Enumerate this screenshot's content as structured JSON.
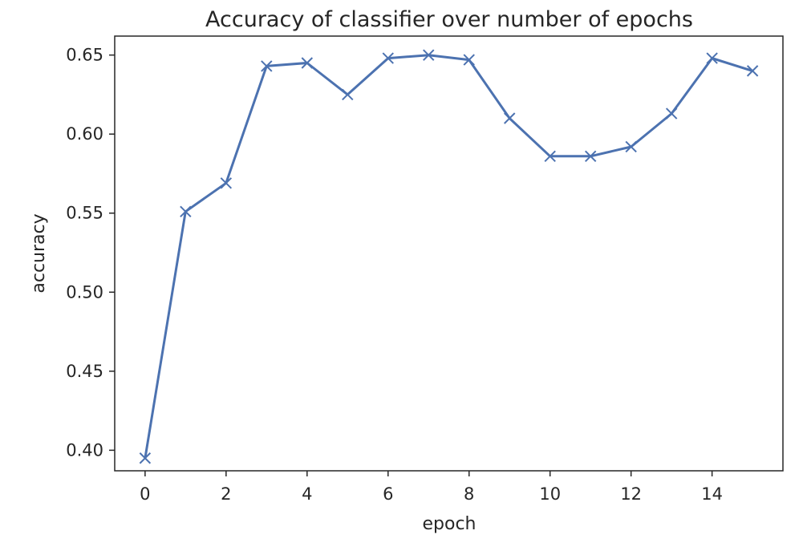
{
  "chart_data": {
    "type": "line",
    "title": "Accuracy of classifier over number of epochs",
    "xlabel": "epoch",
    "ylabel": "accuracy",
    "xlim": [
      -0.75,
      15.75
    ],
    "ylim": [
      0.387,
      0.662
    ],
    "xticks": [
      0,
      2,
      4,
      6,
      8,
      10,
      12,
      14
    ],
    "xtick_labels": [
      "0",
      "2",
      "4",
      "6",
      "8",
      "10",
      "12",
      "14"
    ],
    "yticks": [
      0.4,
      0.45,
      0.5,
      0.55,
      0.6,
      0.65
    ],
    "ytick_labels": [
      "0.40",
      "0.45",
      "0.50",
      "0.55",
      "0.60",
      "0.65"
    ],
    "grid": false,
    "marker": "x",
    "series": [
      {
        "color": "#4c72b0",
        "x": [
          0,
          1,
          2,
          3,
          4,
          5,
          6,
          7,
          8,
          9,
          10,
          11,
          12,
          13,
          14,
          15
        ],
        "y": [
          0.395,
          0.551,
          0.569,
          0.643,
          0.645,
          0.625,
          0.648,
          0.65,
          0.647,
          0.61,
          0.586,
          0.586,
          0.592,
          0.613,
          0.648,
          0.64
        ]
      }
    ]
  }
}
